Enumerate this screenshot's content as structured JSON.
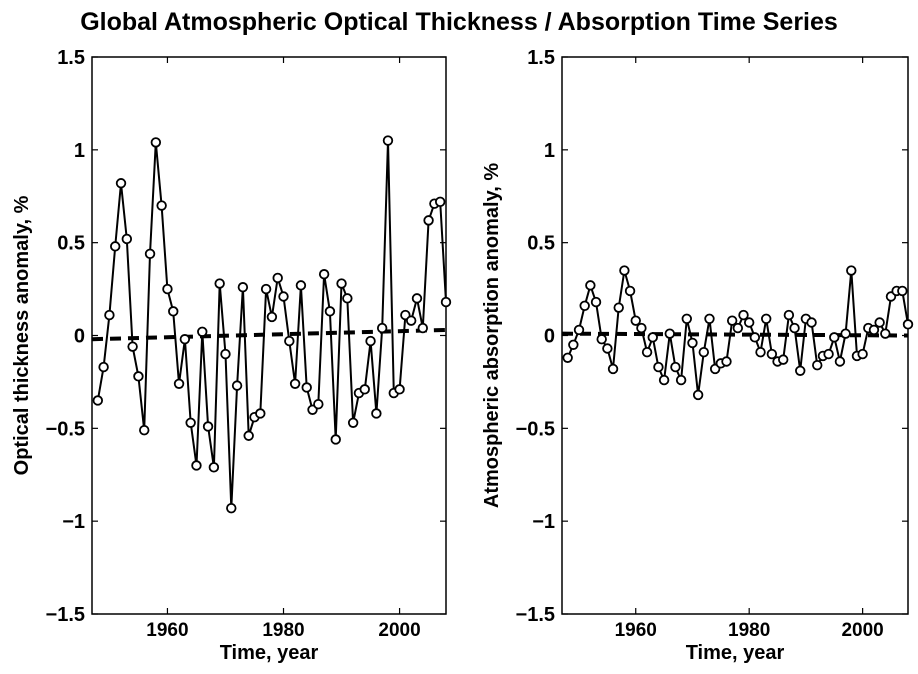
{
  "title": "Global Atmospheric Optical Thickness / Absorption Time Series",
  "chart_data": [
    {
      "type": "line",
      "xlabel": "Time, year",
      "ylabel": "Optical thickness anomaly, %",
      "xlim": [
        1947,
        2008
      ],
      "ylim": [
        -1.5,
        1.5
      ],
      "xticks": [
        1960,
        1980,
        2000
      ],
      "yticks": [
        1.5,
        1,
        0.5,
        0,
        -0.5,
        -1,
        -1.5
      ],
      "ytick_labels": [
        "1.5",
        "1",
        "0.5",
        "0",
        "−0.5",
        "−1",
        "−1.5"
      ],
      "grid": false,
      "trend": {
        "style": "dashed",
        "x": [
          1947,
          2008
        ],
        "y": [
          -0.02,
          0.03
        ]
      },
      "series": [
        {
          "x": [
            1948,
            1949,
            1950,
            1951,
            1952,
            1953,
            1954,
            1955,
            1956,
            1957,
            1958,
            1959,
            1960,
            1961,
            1962,
            1963,
            1964,
            1965,
            1966,
            1967,
            1968,
            1969,
            1970,
            1971,
            1972,
            1973,
            1974,
            1975,
            1976,
            1977,
            1978,
            1979,
            1980,
            1981,
            1982,
            1983,
            1984,
            1985,
            1986,
            1987,
            1988,
            1989,
            1990,
            1991,
            1992,
            1993,
            1994,
            1995,
            1996,
            1997,
            1998,
            1999,
            2000,
            2001,
            2002,
            2003,
            2004,
            2005,
            2006,
            2007,
            2008
          ],
          "y": [
            -0.35,
            -0.17,
            0.11,
            0.48,
            0.82,
            0.52,
            -0.06,
            -0.22,
            -0.51,
            0.44,
            1.04,
            0.7,
            0.25,
            0.13,
            -0.26,
            -0.02,
            -0.47,
            -0.7,
            0.02,
            -0.49,
            -0.71,
            0.28,
            -0.1,
            -0.93,
            -0.27,
            0.26,
            -0.54,
            -0.44,
            -0.42,
            0.25,
            0.1,
            0.31,
            0.21,
            -0.03,
            -0.26,
            0.27,
            -0.28,
            -0.4,
            -0.37,
            0.33,
            0.13,
            -0.56,
            0.28,
            0.2,
            -0.47,
            -0.31,
            -0.29,
            -0.03,
            -0.42,
            0.04,
            1.05,
            -0.31,
            -0.29,
            0.11,
            0.08,
            0.2,
            0.04,
            0.62,
            0.71,
            0.72,
            0.18
          ]
        }
      ]
    },
    {
      "type": "line",
      "xlabel": "Time, year",
      "ylabel": "Atmospheric absorption anomaly, %",
      "xlim": [
        1947,
        2008
      ],
      "ylim": [
        -1.5,
        1.5
      ],
      "xticks": [
        1960,
        1980,
        2000
      ],
      "yticks": [
        1.5,
        1,
        0.5,
        0,
        -0.5,
        -1,
        -1.5
      ],
      "ytick_labels": [
        "1.5",
        "1",
        "0.5",
        "0",
        "−0.5",
        "−1",
        "−1.5"
      ],
      "grid": false,
      "trend": {
        "style": "dashed",
        "x": [
          1947,
          2008
        ],
        "y": [
          0.01,
          0.0
        ]
      },
      "series": [
        {
          "x": [
            1948,
            1949,
            1950,
            1951,
            1952,
            1953,
            1954,
            1955,
            1956,
            1957,
            1958,
            1959,
            1960,
            1961,
            1962,
            1963,
            1964,
            1965,
            1966,
            1967,
            1968,
            1969,
            1970,
            1971,
            1972,
            1973,
            1974,
            1975,
            1976,
            1977,
            1978,
            1979,
            1980,
            1981,
            1982,
            1983,
            1984,
            1985,
            1986,
            1987,
            1988,
            1989,
            1990,
            1991,
            1992,
            1993,
            1994,
            1995,
            1996,
            1997,
            1998,
            1999,
            2000,
            2001,
            2002,
            2003,
            2004,
            2005,
            2006,
            2007,
            2008
          ],
          "y": [
            -0.12,
            -0.05,
            0.03,
            0.16,
            0.27,
            0.18,
            -0.02,
            -0.07,
            -0.18,
            0.15,
            0.35,
            0.24,
            0.08,
            0.04,
            -0.09,
            -0.01,
            -0.17,
            -0.24,
            0.01,
            -0.17,
            -0.24,
            0.09,
            -0.04,
            -0.32,
            -0.09,
            0.09,
            -0.18,
            -0.15,
            -0.14,
            0.08,
            0.04,
            0.11,
            0.07,
            -0.01,
            -0.09,
            0.09,
            -0.1,
            -0.14,
            -0.13,
            0.11,
            0.04,
            -0.19,
            0.09,
            0.07,
            -0.16,
            -0.11,
            -0.1,
            -0.01,
            -0.14,
            0.01,
            0.35,
            -0.11,
            -0.1,
            0.04,
            0.03,
            0.07,
            0.01,
            0.21,
            0.24,
            0.24,
            0.06
          ]
        }
      ]
    }
  ]
}
